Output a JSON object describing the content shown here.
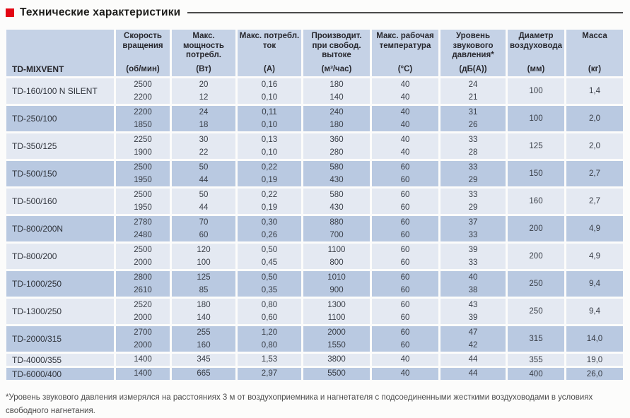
{
  "title": "Технические характеристики",
  "accent_color": "#e30613",
  "colors": {
    "header_bg": "#c5d2e6",
    "row_light": "#e4e9f2",
    "row_dark": "#b9c9e1"
  },
  "table": {
    "model_header": "TD-MIXVENT",
    "columns": [
      {
        "name": "Скорость вращения",
        "unit": "(об/мин)"
      },
      {
        "name": "Макс. мощность потребл.",
        "unit": "(Вт)"
      },
      {
        "name": "Макс. потребл. ток",
        "unit": "(А)"
      },
      {
        "name": "Производит. при свобод. вытоке",
        "unit": "(м³/час)"
      },
      {
        "name": "Макс. рабочая температура",
        "unit": "(°C)"
      },
      {
        "name": "Уровень звукового давления*",
        "unit": "(дБ(А))"
      },
      {
        "name": "Диаметр воздуховода",
        "unit": "(мм)"
      },
      {
        "name": "Масса",
        "unit": "(кг)"
      }
    ],
    "rows": [
      {
        "model": "TD-160/100 N SILENT",
        "speed": [
          "2500",
          "2200"
        ],
        "power": [
          "20",
          "12"
        ],
        "current": [
          "0,16",
          "0,10"
        ],
        "flow": [
          "180",
          "140"
        ],
        "temp": [
          "40",
          "40"
        ],
        "noise": [
          "24",
          "21"
        ],
        "diameter": "100",
        "mass": "1,4"
      },
      {
        "model": "TD-250/100",
        "speed": [
          "2200",
          "1850"
        ],
        "power": [
          "24",
          "18"
        ],
        "current": [
          "0,11",
          "0,10"
        ],
        "flow": [
          "240",
          "180"
        ],
        "temp": [
          "40",
          "40"
        ],
        "noise": [
          "31",
          "26"
        ],
        "diameter": "100",
        "mass": "2,0"
      },
      {
        "model": "TD-350/125",
        "speed": [
          "2250",
          "1900"
        ],
        "power": [
          "30",
          "22"
        ],
        "current": [
          "0,13",
          "0,10"
        ],
        "flow": [
          "360",
          "280"
        ],
        "temp": [
          "40",
          "40"
        ],
        "noise": [
          "33",
          "28"
        ],
        "diameter": "125",
        "mass": "2,0"
      },
      {
        "model": "TD-500/150",
        "speed": [
          "2500",
          "1950"
        ],
        "power": [
          "50",
          "44"
        ],
        "current": [
          "0,22",
          "0,19"
        ],
        "flow": [
          "580",
          "430"
        ],
        "temp": [
          "60",
          "60"
        ],
        "noise": [
          "33",
          "29"
        ],
        "diameter": "150",
        "mass": "2,7"
      },
      {
        "model": "TD-500/160",
        "speed": [
          "2500",
          "1950"
        ],
        "power": [
          "50",
          "44"
        ],
        "current": [
          "0,22",
          "0,19"
        ],
        "flow": [
          "580",
          "430"
        ],
        "temp": [
          "60",
          "60"
        ],
        "noise": [
          "33",
          "29"
        ],
        "diameter": "160",
        "mass": "2,7"
      },
      {
        "model": "TD-800/200N",
        "speed": [
          "2780",
          "2480"
        ],
        "power": [
          "70",
          "60"
        ],
        "current": [
          "0,30",
          "0,26"
        ],
        "flow": [
          "880",
          "700"
        ],
        "temp": [
          "60",
          "60"
        ],
        "noise": [
          "37",
          "33"
        ],
        "diameter": "200",
        "mass": "4,9"
      },
      {
        "model": "TD-800/200",
        "speed": [
          "2500",
          "2000"
        ],
        "power": [
          "120",
          "100"
        ],
        "current": [
          "0,50",
          "0,45"
        ],
        "flow": [
          "1100",
          "800"
        ],
        "temp": [
          "60",
          "60"
        ],
        "noise": [
          "39",
          "33"
        ],
        "diameter": "200",
        "mass": "4,9"
      },
      {
        "model": "TD-1000/250",
        "speed": [
          "2800",
          "2610"
        ],
        "power": [
          "125",
          "85"
        ],
        "current": [
          "0,50",
          "0,35"
        ],
        "flow": [
          "1010",
          "900"
        ],
        "temp": [
          "60",
          "60"
        ],
        "noise": [
          "40",
          "38"
        ],
        "diameter": "250",
        "mass": "9,4"
      },
      {
        "model": "TD-1300/250",
        "speed": [
          "2520",
          "2000"
        ],
        "power": [
          "180",
          "140"
        ],
        "current": [
          "0,80",
          "0,60"
        ],
        "flow": [
          "1300",
          "1100"
        ],
        "temp": [
          "60",
          "60"
        ],
        "noise": [
          "43",
          "39"
        ],
        "diameter": "250",
        "mass": "9,4"
      },
      {
        "model": "TD-2000/315",
        "speed": [
          "2700",
          "2000"
        ],
        "power": [
          "255",
          "160"
        ],
        "current": [
          "1,20",
          "0,80"
        ],
        "flow": [
          "2000",
          "1550"
        ],
        "temp": [
          "60",
          "60"
        ],
        "noise": [
          "47",
          "42"
        ],
        "diameter": "315",
        "mass": "14,0"
      },
      {
        "model": "TD-4000/355",
        "speed": [
          "1400"
        ],
        "power": [
          "345"
        ],
        "current": [
          "1,53"
        ],
        "flow": [
          "3800"
        ],
        "temp": [
          "40"
        ],
        "noise": [
          "44"
        ],
        "diameter": "355",
        "mass": "19,0"
      },
      {
        "model": "TD-6000/400",
        "speed": [
          "1400"
        ],
        "power": [
          "665"
        ],
        "current": [
          "2,97"
        ],
        "flow": [
          "5500"
        ],
        "temp": [
          "40"
        ],
        "noise": [
          "44"
        ],
        "diameter": "400",
        "mass": "26,0"
      }
    ]
  },
  "footnote": "*Уровень звукового давления измерялся на расстояниях 3 м от воздухоприемника и нагнетателя с подсоединенными жесткими воздуховодами в условиях свободного нагнетания."
}
